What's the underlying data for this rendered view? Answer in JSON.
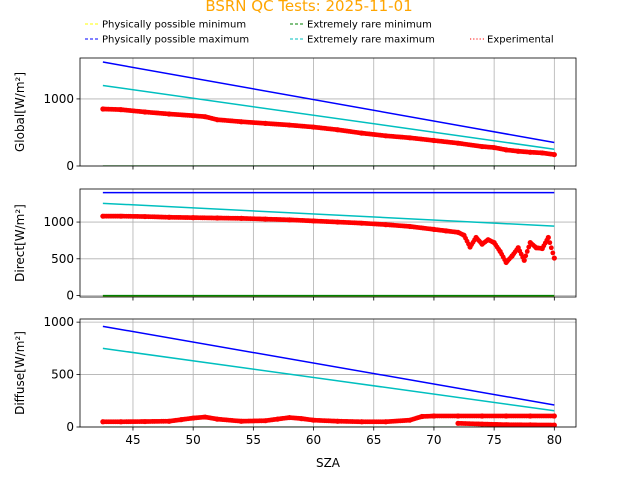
{
  "title": "BSRN QC Tests: 2025-11-01",
  "title_color": "#ffa500",
  "legend": [
    {
      "label": "Physically possible minimum",
      "color": "#ffff00",
      "style": "dashed"
    },
    {
      "label": "Physically possible maximum",
      "color": "#0000ff",
      "style": "dashed"
    },
    {
      "label": "Extremely rare minimum",
      "color": "#008000",
      "style": "dashed"
    },
    {
      "label": "Extremely rare maximum",
      "color": "#00bfbf",
      "style": "dashed"
    },
    {
      "label": "Experimental",
      "color": "#ff0000",
      "style": "dotted"
    }
  ],
  "chart_data": {
    "type": "line",
    "xlabel": "SZA",
    "xlim": [
      40.6,
      81.8
    ],
    "xticks": [
      45,
      50,
      55,
      60,
      65,
      70,
      75,
      80
    ],
    "grid": true,
    "legend_position": "top",
    "panels": [
      {
        "ylabel": "Global[W/m²]",
        "ylim": [
          0,
          1610
        ],
        "yticks": [
          0,
          1000
        ],
        "series": [
          {
            "name": "Physically possible minimum",
            "color": "#ffff00",
            "x": [
              42.5,
              80
            ],
            "y": [
              -4,
              -4
            ]
          },
          {
            "name": "Physically possible maximum",
            "color": "#0000ff",
            "x": [
              42.5,
              80
            ],
            "y": [
              1550,
              350
            ]
          },
          {
            "name": "Extremely rare minimum",
            "color": "#008000",
            "x": [
              42.5,
              80
            ],
            "y": [
              -2,
              -2
            ]
          },
          {
            "name": "Extremely rare maximum",
            "color": "#00bfbf",
            "x": [
              42.5,
              80
            ],
            "y": [
              1200,
              250
            ]
          },
          {
            "name": "Experimental",
            "color": "#ff0000",
            "kind": "points",
            "x": [
              42.5,
              44,
              46,
              48,
              50,
              51,
              52,
              54,
              56,
              58,
              60,
              62,
              64,
              66,
              68,
              70,
              72,
              74,
              75,
              76,
              77,
              78,
              79,
              80
            ],
            "y": [
              850,
              840,
              805,
              775,
              750,
              735,
              690,
              660,
              635,
              610,
              580,
              540,
              490,
              450,
              420,
              380,
              340,
              290,
              275,
              240,
              220,
              205,
              195,
              170
            ]
          }
        ]
      },
      {
        "ylabel": "Direct[W/m²]",
        "ylim": [
          -20,
          1450
        ],
        "yticks": [
          0,
          500,
          1000
        ],
        "series": [
          {
            "name": "Physically possible minimum",
            "color": "#ffff00",
            "x": [
              42.5,
              80
            ],
            "y": [
              -4,
              -4
            ]
          },
          {
            "name": "Physically possible maximum",
            "color": "#0000ff",
            "x": [
              42.5,
              80
            ],
            "y": [
              1400,
              1400
            ]
          },
          {
            "name": "Extremely rare minimum",
            "color": "#008000",
            "x": [
              42.5,
              80
            ],
            "y": [
              -2,
              -2
            ]
          },
          {
            "name": "Extremely rare maximum",
            "color": "#00bfbf",
            "x": [
              42.5,
              80
            ],
            "y": [
              1255,
              945
            ]
          },
          {
            "name": "Experimental",
            "color": "#ff0000",
            "kind": "points",
            "x": [
              42.5,
              44,
              46,
              48,
              50,
              52,
              54,
              56,
              58,
              60,
              62,
              64,
              66,
              68,
              70,
              71,
              72,
              72.5,
              73,
              73.5,
              74,
              74.5,
              75,
              75.5,
              76,
              76.5,
              77,
              77.5,
              78,
              78.5,
              79,
              79.5,
              80
            ],
            "y": [
              1080,
              1080,
              1075,
              1065,
              1060,
              1055,
              1050,
              1040,
              1030,
              1015,
              1000,
              985,
              965,
              940,
              900,
              880,
              860,
              820,
              660,
              790,
              700,
              760,
              720,
              600,
              450,
              540,
              650,
              480,
              720,
              650,
              640,
              790,
              510
            ]
          }
        ]
      },
      {
        "ylabel": "Diffuse[W/m²]",
        "ylim": [
          0,
          1030
        ],
        "yticks": [
          0,
          500,
          1000
        ],
        "series": [
          {
            "name": "Physically possible minimum",
            "color": "#ffff00",
            "x": [
              42.5,
              80
            ],
            "y": [
              -4,
              -4
            ]
          },
          {
            "name": "Physically possible maximum",
            "color": "#0000ff",
            "x": [
              42.5,
              80
            ],
            "y": [
              960,
              210
            ]
          },
          {
            "name": "Extremely rare minimum",
            "color": "#008000",
            "x": [
              42.5,
              80
            ],
            "y": [
              -2,
              -2
            ]
          },
          {
            "name": "Extremely rare maximum",
            "color": "#00bfbf",
            "x": [
              42.5,
              80
            ],
            "y": [
              750,
              155
            ]
          },
          {
            "name": "Experimental",
            "color": "#ff0000",
            "kind": "points",
            "x": [
              42.5,
              44,
              46,
              48,
              49,
              50,
              51,
              52,
              54,
              56,
              57,
              58,
              59,
              60,
              62,
              64,
              66,
              68,
              69,
              70,
              72,
              74,
              76,
              78,
              80,
              72,
              74,
              76,
              78,
              80
            ],
            "y": [
              50,
              50,
              52,
              55,
              70,
              85,
              95,
              75,
              55,
              60,
              75,
              90,
              80,
              65,
              55,
              50,
              50,
              65,
              100,
              105,
              105,
              105,
              105,
              105,
              105,
              35,
              28,
              22,
              20,
              18
            ]
          }
        ]
      }
    ]
  }
}
